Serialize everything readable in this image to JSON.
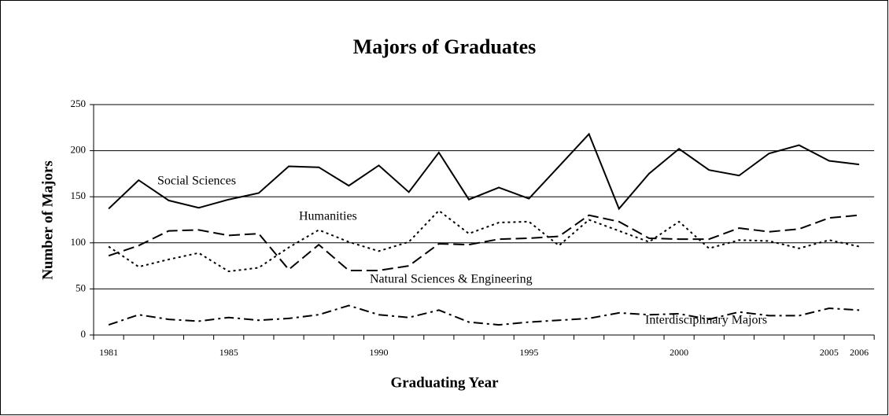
{
  "chart_data": {
    "type": "line",
    "title": "Majors of Graduates",
    "x_label": "Graduating Year",
    "y_label": "Number of Majors",
    "categories": [
      "1981",
      null,
      null,
      null,
      "1985",
      null,
      null,
      null,
      null,
      "1990",
      null,
      null,
      null,
      null,
      "1995",
      null,
      null,
      null,
      null,
      "2000",
      null,
      null,
      null,
      null,
      "2005",
      "2006"
    ],
    "series": [
      {
        "name": "Social Sciences",
        "color": "#000000",
        "style": "solid",
        "values": [
          137,
          168,
          146,
          138,
          147,
          154,
          183,
          182,
          162,
          184,
          155,
          198,
          147,
          160,
          148,
          183,
          218,
          137,
          175,
          202,
          179,
          173,
          197,
          206,
          189,
          185
        ]
      },
      {
        "name": "Humanities",
        "color": "#000000",
        "style": "dotted",
        "values": [
          96,
          74,
          82,
          89,
          69,
          73,
          95,
          114,
          101,
          91,
          101,
          135,
          110,
          122,
          123,
          97,
          125,
          113,
          101,
          123,
          94,
          103,
          102,
          94,
          103,
          96
        ]
      },
      {
        "name": "Natural Sciences & Engineering",
        "color": "#000000",
        "style": "dashed",
        "values": [
          86,
          97,
          113,
          114,
          108,
          110,
          71,
          98,
          70,
          70,
          75,
          99,
          98,
          104,
          105,
          107,
          130,
          123,
          105,
          104,
          104,
          116,
          112,
          115,
          127,
          130
        ]
      },
      {
        "name": "Interdisciplinary Majors",
        "color": "#000000",
        "style": "dashdot",
        "values": [
          11,
          22,
          17,
          15,
          19,
          16,
          18,
          22,
          32,
          22,
          19,
          27,
          14,
          11,
          14,
          16,
          18,
          24,
          22,
          23,
          17,
          25,
          21,
          21,
          29,
          27
        ]
      }
    ],
    "ylim": [
      0,
      250
    ],
    "yticks": [
      0,
      50,
      100,
      150,
      200,
      250
    ],
    "grid": true
  }
}
